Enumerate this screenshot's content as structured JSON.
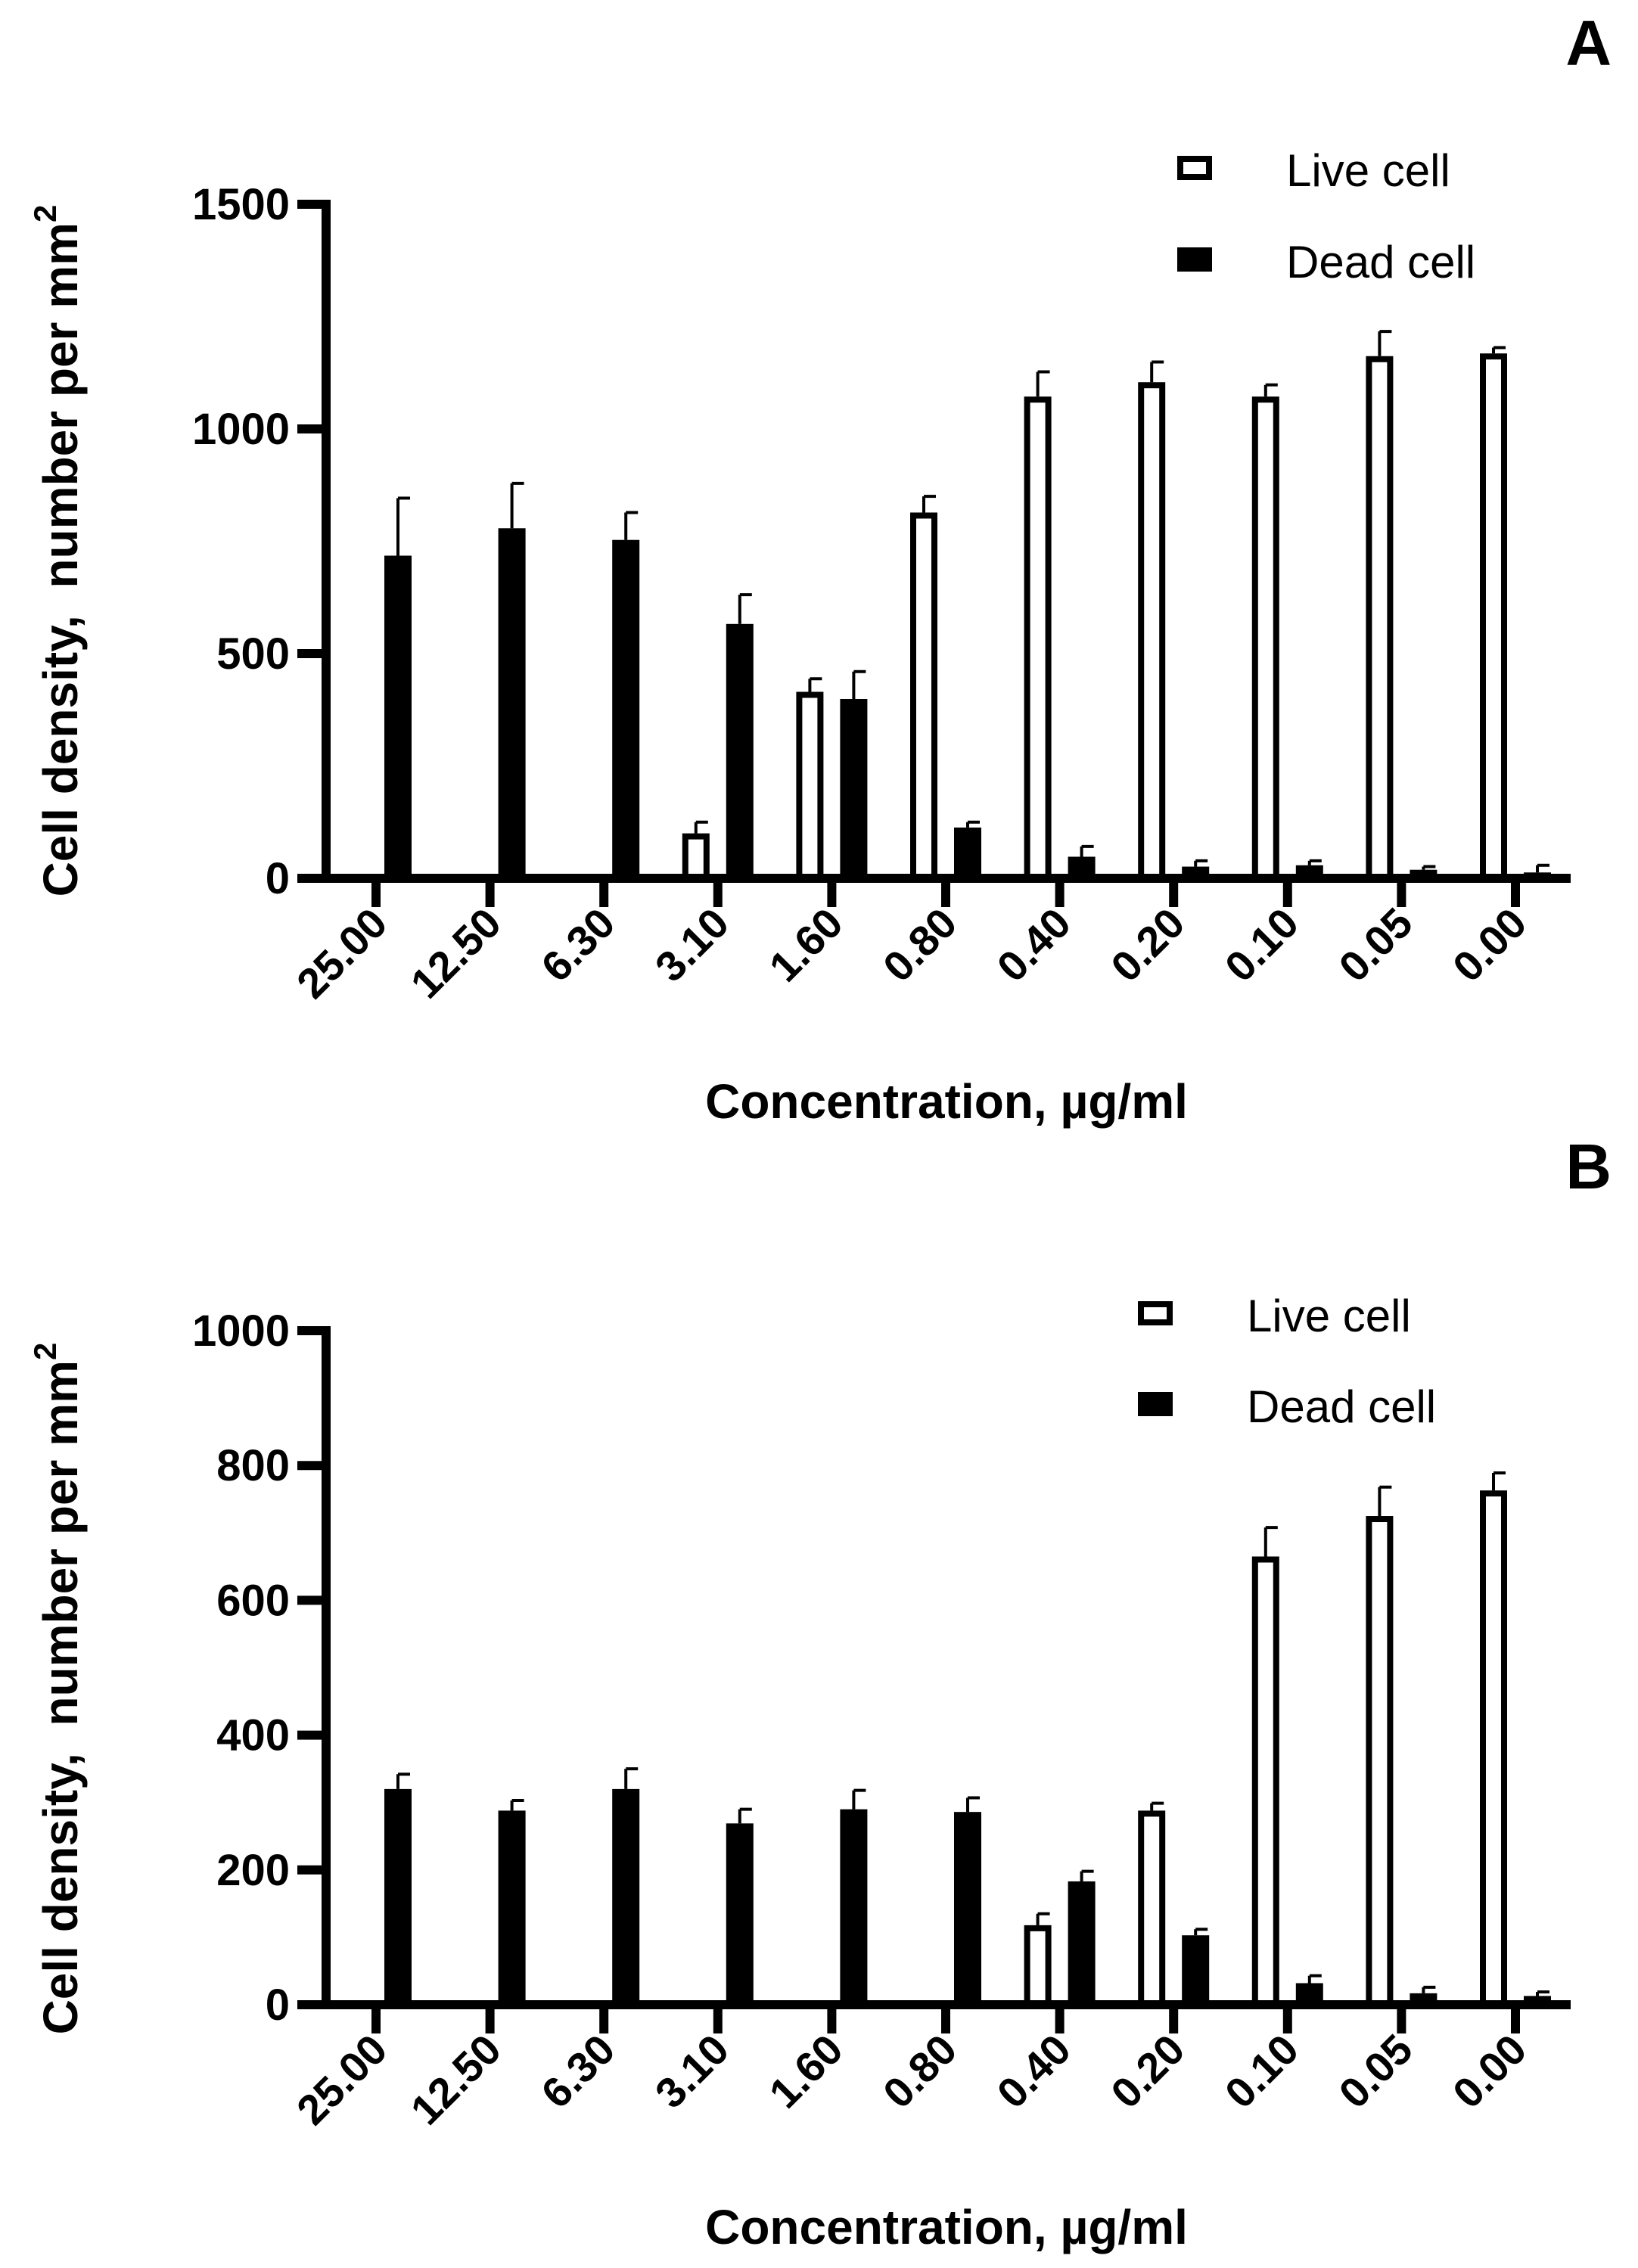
{
  "chart_data": [
    {
      "type": "bar",
      "panel_label": "A",
      "xlabel": "Concentration, µg/ml",
      "ylabel": "Cell density,  number per mm",
      "ylabel_superscript": "2",
      "ylim": [
        0,
        1500
      ],
      "yticks": [
        0,
        500,
        1000,
        1500
      ],
      "categories": [
        "25.00",
        "12.50",
        "6.30",
        "3.10",
        "1.60",
        "0.80",
        "0.40",
        "0.20",
        "0.10",
        "0.05",
        "0.00"
      ],
      "legend_position": "top-right",
      "series": [
        {
          "name": "Live cell",
          "style": "open",
          "values": [
            0,
            0,
            0,
            100,
            415,
            814,
            1072,
            1104,
            1072,
            1162,
            1168
          ],
          "errors": [
            0,
            0,
            0,
            25,
            29,
            36,
            55,
            45,
            26,
            55,
            13
          ]
        },
        {
          "name": "Dead cell",
          "style": "filled",
          "values": [
            718,
            779,
            753,
            566,
            399,
            113,
            48,
            26,
            29,
            19,
            13
          ],
          "errors": [
            128,
            100,
            61,
            65,
            61,
            12,
            23,
            13,
            10,
            7,
            16
          ]
        }
      ]
    },
    {
      "type": "bar",
      "panel_label": "B",
      "xlabel": "Concentration, µg/ml",
      "ylabel": "Cell density,  number per mm",
      "ylabel_superscript": "2",
      "ylim": [
        0,
        1000
      ],
      "yticks": [
        0,
        200,
        400,
        600,
        800,
        1000
      ],
      "categories": [
        "25.00",
        "12.50",
        "6.30",
        "3.10",
        "1.60",
        "0.80",
        "0.40",
        "0.20",
        "0.10",
        "0.05",
        "0.00"
      ],
      "legend_position": "top-right",
      "series": [
        {
          "name": "Live cell",
          "style": "open",
          "values": [
            0,
            0,
            0,
            0,
            0,
            4,
            118,
            288,
            665,
            725,
            763
          ],
          "errors": [
            0,
            0,
            0,
            0,
            0,
            0,
            17,
            11,
            43,
            43,
            26
          ]
        },
        {
          "name": "Dead cell",
          "style": "filled",
          "values": [
            320,
            288,
            320,
            269,
            290,
            286,
            183,
            103,
            32,
            17,
            13
          ],
          "errors": [
            22,
            15,
            30,
            21,
            28,
            21,
            15,
            9,
            11,
            9,
            6
          ]
        }
      ]
    }
  ]
}
